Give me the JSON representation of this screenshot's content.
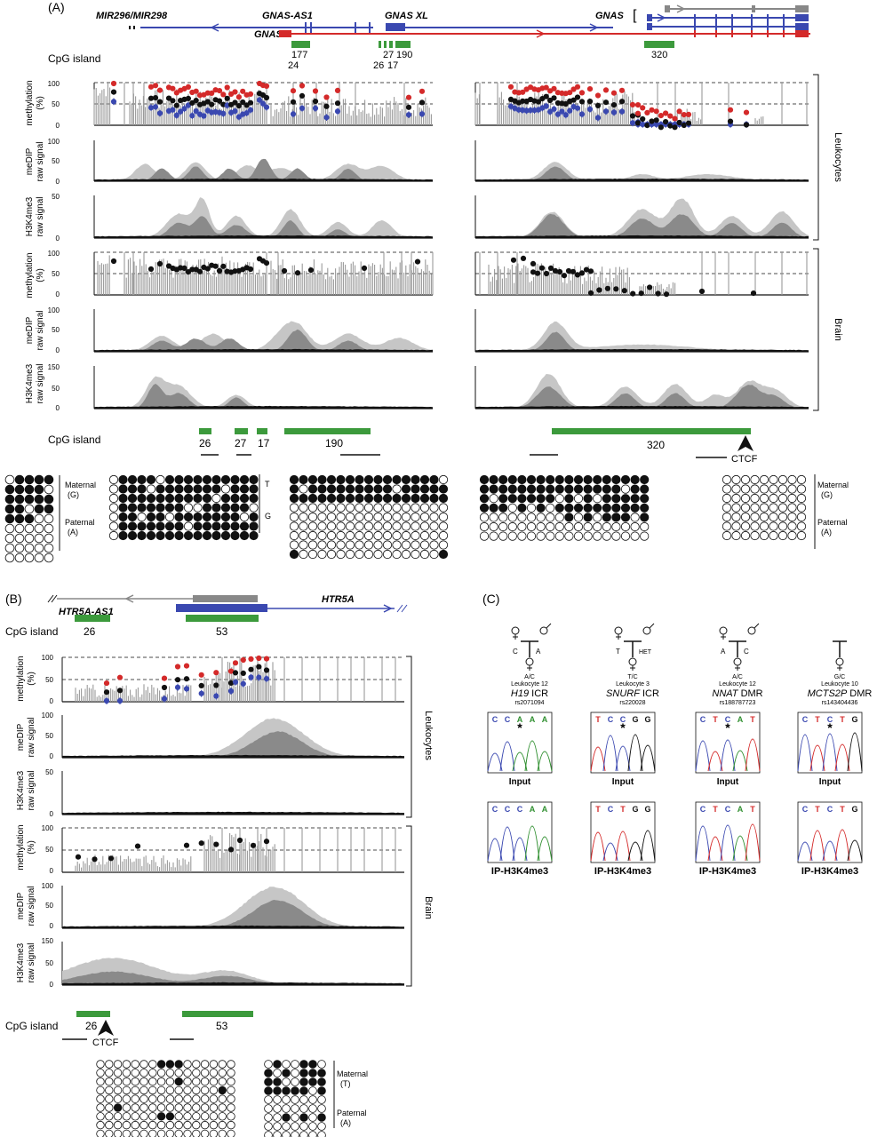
{
  "panelA": {
    "label": "(A)",
    "genes": {
      "mir": "MIR296/MIR298",
      "gnas_as1": "GNAS-AS1",
      "gnas_xl": "GNAS XL",
      "gnas_left": "GNAS",
      "gnas_right": "GNAS"
    },
    "cpg_label": "CpG island",
    "cpg_top_nums": [
      "177",
      "24",
      "27",
      "26",
      "17",
      "190",
      "320"
    ],
    "cpg_bottom_nums": [
      "26",
      "27",
      "17",
      "190",
      "320"
    ],
    "ctcf": "CTCF",
    "y_labels": {
      "methylation": [
        "methylation",
        "(%)"
      ],
      "medip": [
        "meDIP",
        "raw signal"
      ],
      "h3k4": [
        "H3K4me3",
        "raw signal"
      ]
    },
    "ticks": {
      "meth": [
        "100",
        "50",
        "0"
      ],
      "medip_leu": [
        "100",
        "50",
        "0"
      ],
      "h3k_leu": [
        "50",
        "0"
      ],
      "medip_brain": [
        "100",
        "50",
        "0"
      ],
      "h3k_brain": [
        "150",
        "50",
        "0"
      ]
    },
    "tissues": [
      "Leukocytes",
      "Brain"
    ],
    "bisulfite_labels": {
      "maternal": [
        "Maternal",
        "(G)"
      ],
      "paternal": [
        "Paternal",
        "(A)"
      ],
      "t": "T",
      "g": "G"
    }
  },
  "panelB": {
    "label": "(B)",
    "genes": {
      "as": "HTR5A-AS1",
      "gene": "HTR5A"
    },
    "cpg_label": "CpG island",
    "cpg_nums": [
      "26",
      "53"
    ],
    "ctcf": "CTCF",
    "tissues": [
      "Leukocytes",
      "Brain"
    ],
    "ticks": {
      "meth": [
        "100",
        "50",
        "0"
      ],
      "medip": [
        "100",
        "50",
        "0"
      ],
      "h3k_leu": [
        "50",
        "0"
      ],
      "h3k_brain": [
        "150",
        "50",
        "0"
      ]
    },
    "bisulfite_labels": {
      "maternal": [
        "Maternal",
        "(T)"
      ],
      "paternal": [
        "Paternal",
        "(A)"
      ]
    }
  },
  "panelC": {
    "label": "(C)",
    "samples": [
      {
        "genotype": "A/C",
        "tissue": "Leukocyte 12",
        "gene": "H19",
        "region": "ICR",
        "snp": "rs2071094",
        "parents": [
          "C",
          "A"
        ],
        "input_bases": [
          "C",
          "C",
          "A",
          "A",
          "A"
        ],
        "ip_bases": [
          "C",
          "C",
          "C",
          "A",
          "A"
        ]
      },
      {
        "genotype": "T/C",
        "tissue": "Leukocyte 3",
        "gene": "SNURF",
        "region": "ICR",
        "snp": "rs220028",
        "parents": [
          "T",
          "HET"
        ],
        "input_bases": [
          "T",
          "C",
          "C",
          "G",
          "G"
        ],
        "ip_bases": [
          "T",
          "C",
          "T",
          "G",
          "G"
        ]
      },
      {
        "genotype": "A/C",
        "tissue": "Leukocyte 12",
        "gene": "NNAT",
        "region": "DMR",
        "snp": "rs188787723",
        "parents": [
          "A",
          "C"
        ],
        "input_bases": [
          "C",
          "T",
          "C",
          "A",
          "T"
        ],
        "ip_bases": [
          "C",
          "T",
          "C",
          "A",
          "T"
        ]
      },
      {
        "genotype": "G/C",
        "tissue": "Leukocyte 10",
        "gene": "MCTS2P",
        "region": "DMR",
        "snp": "rs143404436",
        "parents": [],
        "input_bases": [
          "C",
          "T",
          "C",
          "T",
          "G"
        ],
        "ip_bases": [
          "C",
          "T",
          "C",
          "T",
          "G"
        ]
      }
    ],
    "input_label": "Input",
    "ip_label": "IP-H3K4me3",
    "star": "*"
  },
  "colors": {
    "red": "#d42a2a",
    "blue": "#3a48b0",
    "green": "#3c9a3c",
    "gray": "#888888",
    "light": "#c6c6c6",
    "mid": "#8a8a8a",
    "dark": "#111111"
  }
}
